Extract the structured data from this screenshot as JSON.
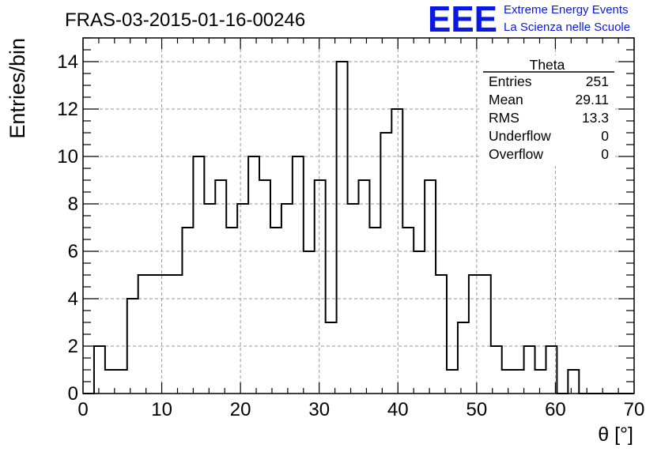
{
  "chart_data": {
    "type": "histogram",
    "title": "FRAS-03-2015-01-16-00246",
    "xlabel": "θ [°]",
    "ylabel": "Entries/bin",
    "xlim": [
      0,
      70
    ],
    "ylim": [
      0,
      15
    ],
    "x_ticks": [
      0,
      10,
      20,
      30,
      40,
      50,
      60,
      70
    ],
    "y_ticks": [
      0,
      2,
      4,
      6,
      8,
      10,
      12,
      14
    ],
    "grid": true,
    "bin_width": 1.4,
    "bin_start": 0,
    "values": [
      0,
      2,
      1,
      1,
      4,
      5,
      5,
      5,
      5,
      7,
      10,
      8,
      9,
      7,
      8,
      10,
      9,
      7,
      8,
      10,
      6,
      9,
      3,
      14,
      8,
      9,
      7,
      11,
      12,
      7,
      6,
      9,
      5,
      1,
      3,
      5,
      5,
      2,
      1,
      1,
      2,
      1,
      2,
      0,
      1,
      0,
      0,
      0,
      0,
      0
    ],
    "stats_box": {
      "title": "Theta",
      "rows": [
        {
          "label": "Entries",
          "value": "251"
        },
        {
          "label": "Mean",
          "value": "29.11"
        },
        {
          "label": "RMS",
          "value": "13.3"
        },
        {
          "label": "Underflow",
          "value": "0"
        },
        {
          "label": "Overflow",
          "value": "0"
        }
      ]
    },
    "line_color": "#000000"
  },
  "logo": {
    "mark": "EEE",
    "line1": "Extreme Energy Events",
    "line2": "La Scienza nelle Scuole",
    "color": "#0a18e6"
  }
}
